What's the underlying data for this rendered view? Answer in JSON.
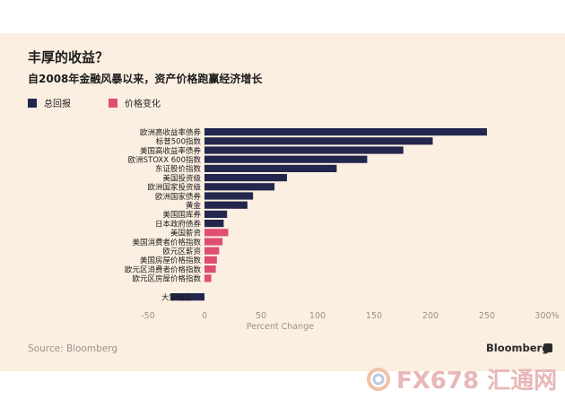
{
  "title": "丰厚的收益？",
  "subtitle": "自2008年金融风暴以来，资产价格跑赢经济增长",
  "source": "Source: Bloomberg",
  "brand": "Bloomberg",
  "watermark_text": "FX678 汇通网",
  "colors": {
    "total": "#23264d",
    "price": "#df4d72",
    "background": "#fbefe1"
  },
  "chart_data": {
    "type": "bar",
    "orientation": "horizontal",
    "series": [
      {
        "name": "总回报",
        "color": "#23264d"
      },
      {
        "name": "价格变化",
        "color": "#df4d72"
      }
    ],
    "bars": [
      {
        "label": "欧洲高收益率债券",
        "value": 250,
        "series": "总回报"
      },
      {
        "label": "标普500指数",
        "value": 202,
        "series": "总回报"
      },
      {
        "label": "美国高收益率债券",
        "value": 176,
        "series": "总回报"
      },
      {
        "label": "欧洲STOXX 600指数",
        "value": 144,
        "series": "总回报"
      },
      {
        "label": "东证股价指数",
        "value": 117,
        "series": "总回报"
      },
      {
        "label": "美国投资级",
        "value": 73,
        "series": "总回报"
      },
      {
        "label": "欧洲国家投资级",
        "value": 62,
        "series": "总回报"
      },
      {
        "label": "欧洲国家债券",
        "value": 43,
        "series": "总回报"
      },
      {
        "label": "黄金",
        "value": 38,
        "series": "总回报"
      },
      {
        "label": "美国国库券",
        "value": 20,
        "series": "总回报"
      },
      {
        "label": "日本政府债券",
        "value": 17,
        "series": "总回报"
      },
      {
        "label": "美国薪资",
        "value": 21,
        "series": "价格变化"
      },
      {
        "label": "美国消费者价格指数",
        "value": 16,
        "series": "价格变化"
      },
      {
        "label": "欧元区薪资",
        "value": 13,
        "series": "价格变化"
      },
      {
        "label": "美国房屋价格指数",
        "value": 11,
        "series": "价格变化"
      },
      {
        "label": "欧元区消费者价格指数",
        "value": 10,
        "series": "价格变化"
      },
      {
        "label": "欧元区房屋价格指数",
        "value": 6,
        "series": "价格变化"
      },
      {
        "label": "大宗商品",
        "value": -30,
        "series": "总回报",
        "separated": true
      }
    ],
    "xticks": [
      "-50",
      "0",
      "50",
      "100",
      "150",
      "200",
      "250",
      "300%"
    ],
    "xlim": [
      -50,
      300
    ],
    "xlabel": "Percent Change"
  }
}
